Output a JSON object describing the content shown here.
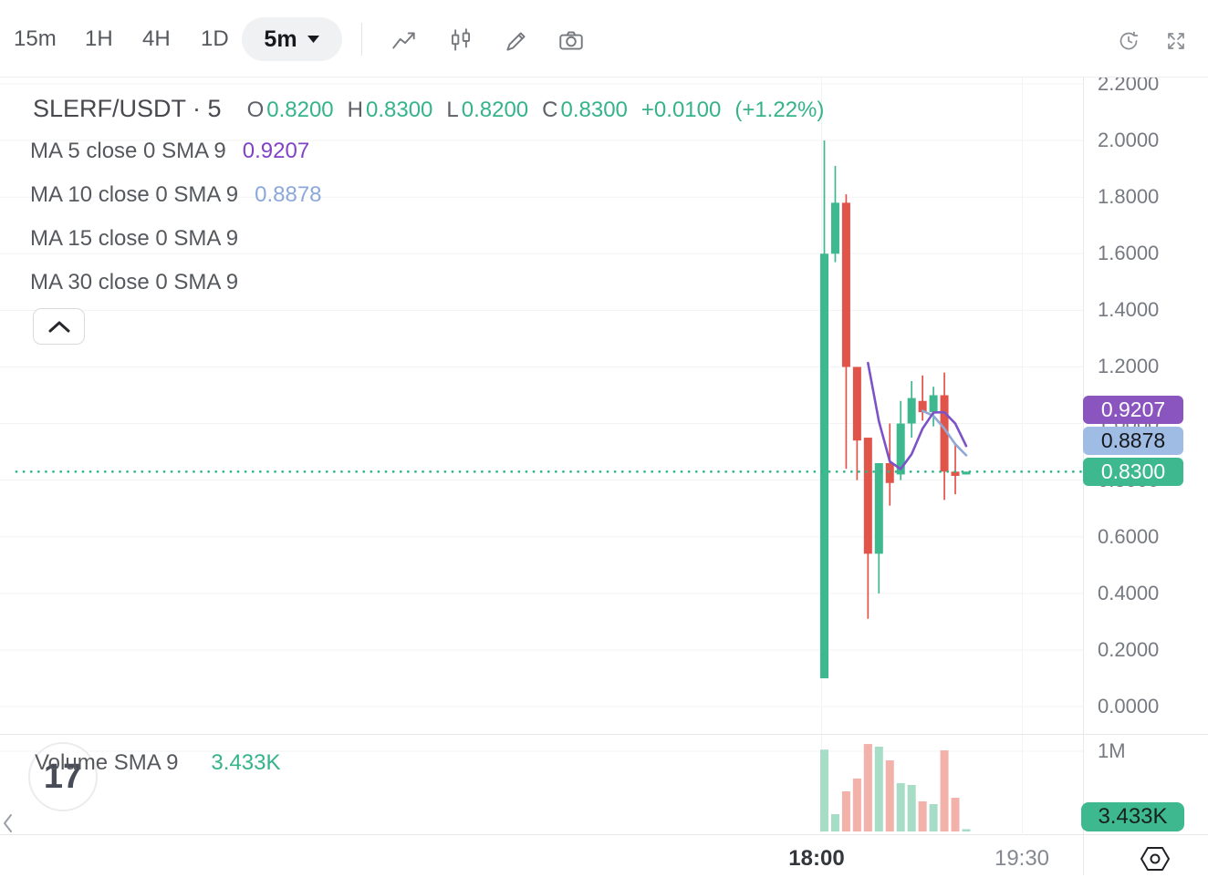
{
  "toolbar": {
    "timeframes": [
      {
        "label": "15m"
      },
      {
        "label": "1H"
      },
      {
        "label": "4H"
      },
      {
        "label": "1D"
      }
    ],
    "selected_timeframe": "5m",
    "tool_icons": [
      "trend-line-icon",
      "candlestick-icon",
      "pencil-icon",
      "camera-icon"
    ],
    "right_icons": [
      "history-clock-icon",
      "fullscreen-icon"
    ]
  },
  "chart_header": {
    "symbol": "SLERF/USDT · 5",
    "ohlc": [
      {
        "k": "O",
        "v": "0.8200"
      },
      {
        "k": "H",
        "v": "0.8300"
      },
      {
        "k": "L",
        "v": "0.8200"
      },
      {
        "k": "C",
        "v": "0.8300"
      }
    ],
    "change": "+0.0100",
    "change_pct": "(+1.22%)"
  },
  "indicators": [
    {
      "label": "MA 5 close 0 SMA 9",
      "value": "0.9207"
    },
    {
      "label": "MA 10 close 0 SMA 9",
      "value": "0.8878"
    },
    {
      "label": "MA 15 close 0 SMA 9",
      "value": ""
    },
    {
      "label": "MA 30 close 0 SMA 9",
      "value": ""
    }
  ],
  "price_axis": {
    "ticks": [
      {
        "label": "2.2000",
        "value": 2.2
      },
      {
        "label": "2.0000",
        "value": 2.0
      },
      {
        "label": "1.8000",
        "value": 1.8
      },
      {
        "label": "1.6000",
        "value": 1.6
      },
      {
        "label": "1.4000",
        "value": 1.4
      },
      {
        "label": "1.2000",
        "value": 1.2
      },
      {
        "label": "1.0000",
        "value": 1.0
      },
      {
        "label": "0.8000",
        "value": 0.8
      },
      {
        "label": "0.6000",
        "value": 0.6
      },
      {
        "label": "0.4000",
        "value": 0.4
      },
      {
        "label": "0.2000",
        "value": 0.2
      },
      {
        "label": "0.0000",
        "value": 0.0
      }
    ]
  },
  "price_badges": [
    {
      "text": "0.9207",
      "bg": "#8a55be",
      "fg": "#ffffff",
      "kind": "ma5"
    },
    {
      "text": "0.8878",
      "bg": "#9fbce4",
      "fg": "#15171b",
      "kind": "ma10"
    },
    {
      "text": "0.8300",
      "bg": "#3eb88e",
      "fg": "#ffffff",
      "kind": "last-price"
    }
  ],
  "volume_panel": {
    "legend_label": "Volume SMA 9",
    "legend_value": "3.433K",
    "axis_label": "1M",
    "badge_text": "3.433K",
    "watermark": "17"
  },
  "time_axis": {
    "labels": [
      {
        "text": "18:00",
        "bold": true
      },
      {
        "text": "19:30",
        "bold": false
      }
    ]
  },
  "chart_data": {
    "type": "candlestick+volume",
    "symbol": "SLERF/USDT",
    "interval": "5m",
    "price_axis_range": [
      0.0,
      2.2
    ],
    "grid": true,
    "current_price": 0.83,
    "colors": {
      "up": "#3eb88e",
      "down": "#e0544a",
      "vol_up": "#a7ddc6",
      "vol_down": "#f2b1a9",
      "ma5": "#7b52c7",
      "ma10": "#8fa8d5",
      "last_price_line": "#2eb687"
    },
    "candles": [
      {
        "o": 0.1,
        "h": 2.0,
        "l": 0.1,
        "c": 1.6,
        "vol_k": 1020
      },
      {
        "o": 1.6,
        "h": 1.91,
        "l": 1.57,
        "c": 1.78,
        "vol_k": 216
      },
      {
        "o": 1.78,
        "h": 1.81,
        "l": 0.84,
        "c": 1.2,
        "vol_k": 500
      },
      {
        "o": 1.2,
        "h": 1.2,
        "l": 0.8,
        "c": 0.94,
        "vol_k": 660
      },
      {
        "o": 0.95,
        "h": 0.95,
        "l": 0.31,
        "c": 0.54,
        "vol_k": 1090
      },
      {
        "o": 0.54,
        "h": 0.86,
        "l": 0.4,
        "c": 0.86,
        "vol_k": 1057
      },
      {
        "o": 0.86,
        "h": 1.0,
        "l": 0.71,
        "c": 0.79,
        "vol_k": 886
      },
      {
        "o": 0.82,
        "h": 1.08,
        "l": 0.8,
        "c": 1.0,
        "vol_k": 602
      },
      {
        "o": 1.0,
        "h": 1.15,
        "l": 0.95,
        "c": 1.09,
        "vol_k": 580
      },
      {
        "o": 1.08,
        "h": 1.17,
        "l": 1.01,
        "c": 1.04,
        "vol_k": 375
      },
      {
        "o": 1.04,
        "h": 1.13,
        "l": 0.99,
        "c": 1.1,
        "vol_k": 341
      },
      {
        "o": 1.1,
        "h": 1.18,
        "l": 0.73,
        "c": 0.83,
        "vol_k": 1011
      },
      {
        "o": 0.83,
        "h": 0.93,
        "l": 0.75,
        "c": 0.815,
        "vol_k": 420
      },
      {
        "o": 0.82,
        "h": 0.83,
        "l": 0.82,
        "c": 0.83,
        "vol_k": 3.433
      }
    ],
    "ma5": {
      "start_index": 4,
      "values": [
        1.214,
        1.008,
        0.866,
        0.839,
        0.892,
        0.982,
        1.039,
        1.04,
        1.0,
        0.9207
      ]
    },
    "ma10": {
      "start_index": 9,
      "values": [
        1.045,
        1.027,
        0.982,
        0.927,
        0.8878
      ]
    },
    "volume_axis": {
      "gridline_label": "1M",
      "gridline_value_k": 1000
    }
  }
}
